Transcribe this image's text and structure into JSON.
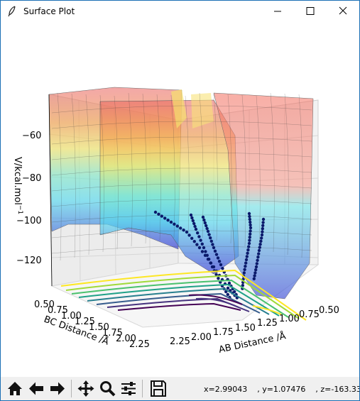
{
  "window": {
    "title": "Surface Plot"
  },
  "colors": {
    "frame": "#1b6fb5",
    "toolbar_bg": "#f0f0f0"
  },
  "toolbar": {
    "buttons": [
      {
        "name": "home-icon"
      },
      {
        "name": "back-arrow-icon"
      },
      {
        "name": "forward-arrow-icon"
      },
      {
        "name": "pan-icon"
      },
      {
        "name": "zoom-icon"
      },
      {
        "name": "configure-subplots-icon"
      },
      {
        "name": "save-icon"
      }
    ],
    "status": "x=2.99043    , y=1.07476    , z=-163.33"
  },
  "chart_data": {
    "type": "surface",
    "zlabel": "V/kcal.mol",
    "zlabel_exp": "−1",
    "xlabel": "AB Distance /Å",
    "ylabel": "BC Distance /Å",
    "z_ticks": [
      "−60",
      "−80",
      "−100",
      "−120"
    ],
    "x_ticks": [
      "2.25",
      "2.00",
      "1.75",
      "1.50",
      "1.25",
      "1.00",
      "0.75",
      "0.50"
    ],
    "y_ticks": [
      "0.50",
      "0.75",
      "1.00",
      "1.25",
      "1.50",
      "1.75",
      "2.00",
      "2.25"
    ],
    "colormap_surface": "jet",
    "colormap_contour": "viridis",
    "trajectory_color": "#0b1a6b"
  }
}
